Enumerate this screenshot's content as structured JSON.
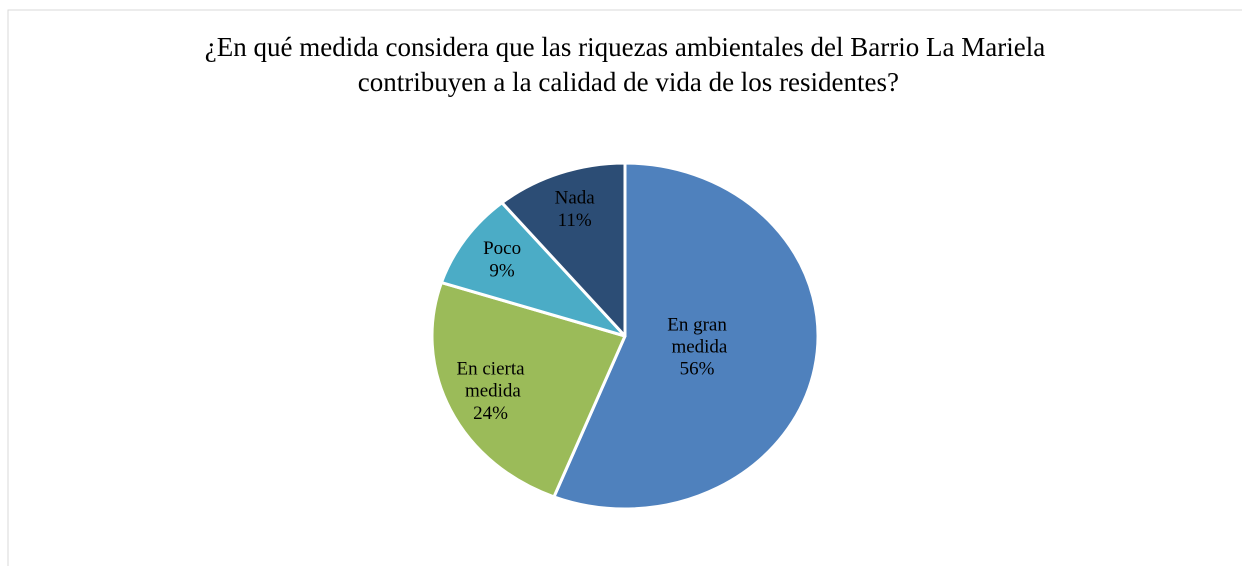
{
  "chart_data": {
    "type": "pie",
    "title": "¿En qué medida considera que las riquezas ambientales del Barrio La Mariela contribuyen a la calidad de vida de los residentes?",
    "categories": [
      "En gran medida",
      "En cierta medida",
      "Poco",
      "Nada"
    ],
    "values": [
      56,
      24,
      9,
      11
    ],
    "value_labels": [
      "56%",
      "24%",
      "9%",
      "11%"
    ],
    "colors": [
      "#4f81bd",
      "#9bbb59",
      "#4bacc6",
      "#2c4d75"
    ]
  }
}
